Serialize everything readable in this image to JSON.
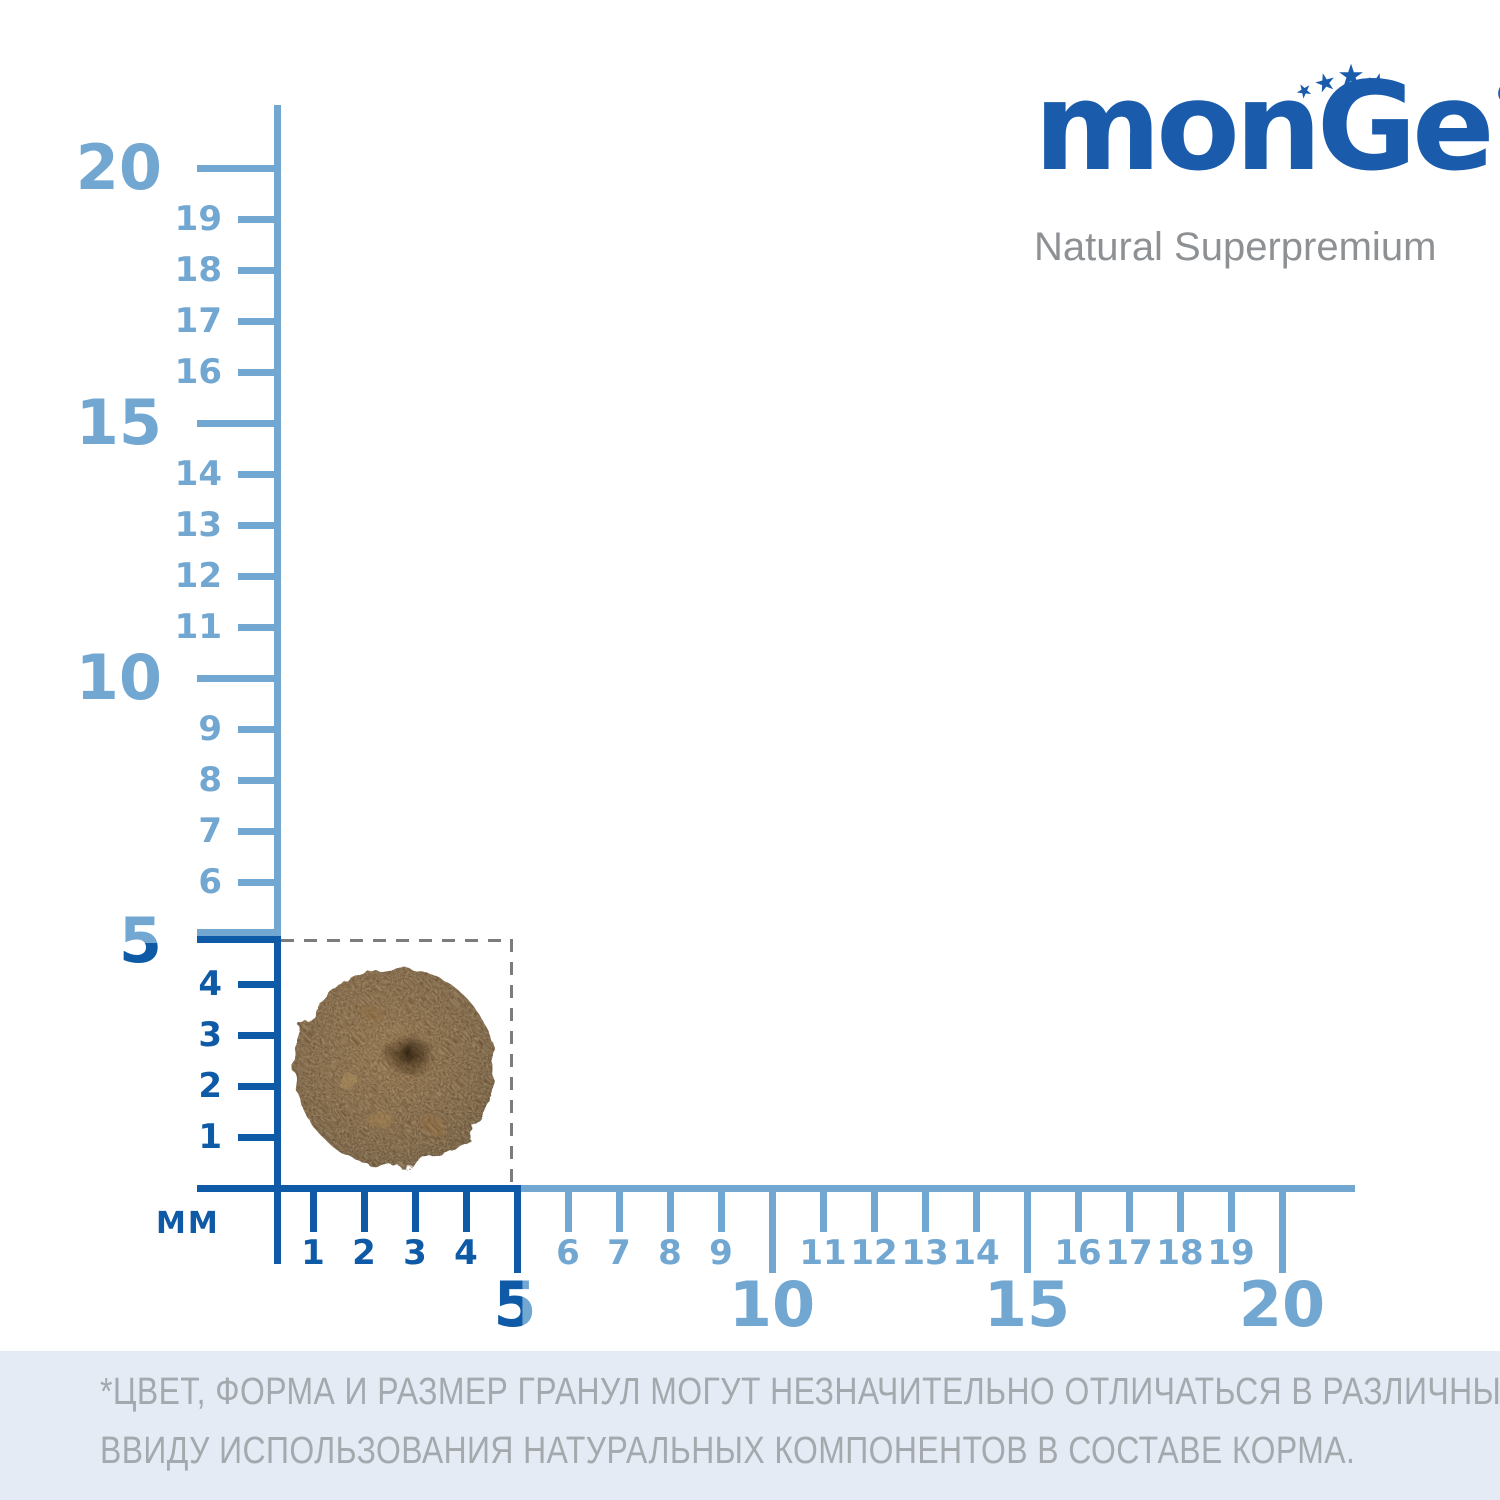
{
  "brand": {
    "word_pre": "mon",
    "word_g": "G",
    "word_post": "e",
    "registered_mark": "®",
    "tagline": "Natural Superpremium",
    "star_char": "★",
    "star_count": 5
  },
  "ruler": {
    "unit_label": "ММ",
    "range_mm": [
      0,
      20
    ],
    "vertical": {
      "minor_labels": [
        "1",
        "2",
        "3",
        "4",
        "6",
        "7",
        "8",
        "9",
        "11",
        "12",
        "13",
        "14",
        "16",
        "17",
        "18",
        "19"
      ],
      "major_labels": [
        "5",
        "10",
        "15",
        "20"
      ]
    },
    "horizontal": {
      "minor_labels": [
        "1",
        "2",
        "3",
        "4",
        "6",
        "7",
        "8",
        "9",
        "11",
        "12",
        "13",
        "14",
        "16",
        "17",
        "18",
        "19"
      ],
      "major_labels": [
        "5",
        "10",
        "15",
        "20"
      ]
    }
  },
  "disclaimer": {
    "line1": "*ЦВЕТ, ФОРМА И РАЗМЕР ГРАНУЛ МОГУТ НЕЗНАЧИТЕЛЬНО ОТЛИЧАТЬСЯ В РАЗЛИЧНЫХ ПАРТИЯХ,",
    "line2": "ВВИДУ ИСПОЛЬЗОВАНИЯ НАТУРАЛЬНЫХ КОМПОНЕНТОВ В СОСТАВЕ КОРМА."
  },
  "colors": {
    "light_blue": "#72a7d2",
    "dark_blue": "#0e5aa7",
    "logo_blue": "#1a5cab",
    "tagline_gray": "#8e9194",
    "disclaimer_gray": "#a4a9ae",
    "band_bg": "#e4ebf4",
    "dash_gray": "#7c7c7c",
    "kibble_brown": "#684a2a"
  }
}
